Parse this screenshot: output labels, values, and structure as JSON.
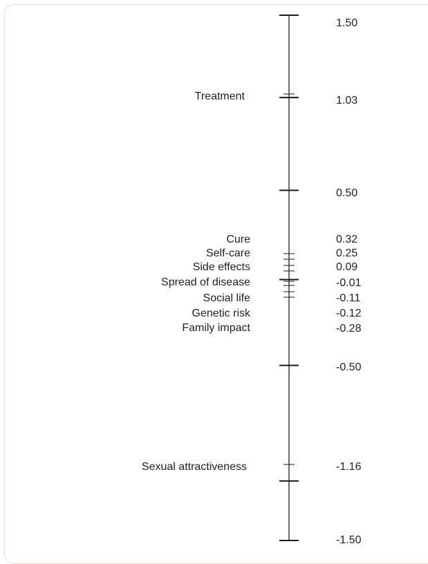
{
  "scale_ticks": [
    {
      "value": 1.5,
      "label": "1.50"
    },
    {
      "value": 1.03,
      "label": "1.03"
    },
    {
      "value": 0.5,
      "label": "0.50"
    },
    {
      "value": 0.32,
      "label": "0.32"
    },
    {
      "value": 0.25,
      "label": "0.25"
    },
    {
      "value": 0.09,
      "label": "0.09"
    },
    {
      "value": -0.01,
      "label": "-0.01"
    },
    {
      "value": -0.11,
      "label": "-0.11"
    },
    {
      "value": -0.12,
      "label": "-0.12"
    },
    {
      "value": -0.28,
      "label": "-0.28"
    },
    {
      "value": -0.5,
      "label": "-0.50"
    },
    {
      "value": -1.16,
      "label": "-1.16"
    },
    {
      "value": -1.5,
      "label": "-1.50"
    }
  ],
  "attributes": [
    {
      "name": "Treatment",
      "value": 1.03
    },
    {
      "name": "Cure",
      "value": 0.32
    },
    {
      "name": "Self-care",
      "value": 0.25
    },
    {
      "name": "Side effects",
      "value": 0.09
    },
    {
      "name": "Spread of disease",
      "value": -0.01
    },
    {
      "name": "Social life",
      "value": -0.11
    },
    {
      "name": "Genetic risk",
      "value": -0.12
    },
    {
      "name": "Family impact",
      "value": -0.28
    },
    {
      "name": "Sexual attractiveness",
      "value": -1.16
    }
  ],
  "colors": {
    "line": "#1a1a1a",
    "text": "#222222",
    "panel_border": "#f3d8d2"
  }
}
